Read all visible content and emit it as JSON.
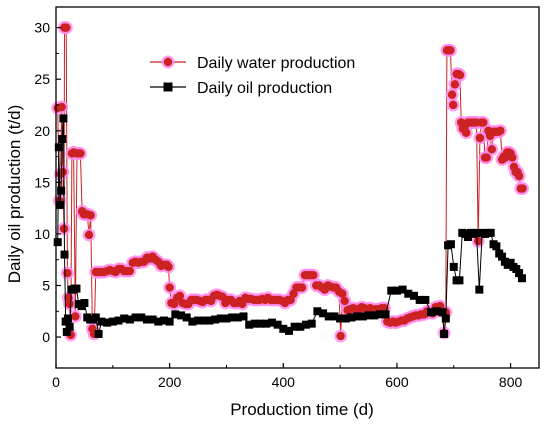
{
  "chart_data": {
    "type": "line",
    "xlabel": "Production time (d)",
    "ylabel": "Daily oil production (t/d)",
    "xlim": [
      0,
      850
    ],
    "ylim": [
      -3,
      32
    ],
    "xticks": [
      0,
      200,
      400,
      600,
      800
    ],
    "yticks": [
      0,
      5,
      10,
      15,
      20,
      25,
      30
    ],
    "grid": false,
    "legend_position": "top-center",
    "series": [
      {
        "name": "Daily water production",
        "marker": "circle",
        "color": "#cc2222",
        "halo": "#ff88ee",
        "points": [
          [
            3,
            22.2
          ],
          [
            6,
            13.2
          ],
          [
            8,
            15.8
          ],
          [
            10,
            22.3
          ],
          [
            12,
            16.0
          ],
          [
            14,
            10.5
          ],
          [
            15,
            30.0
          ],
          [
            18,
            30.0
          ],
          [
            20,
            6.2
          ],
          [
            22,
            3.8
          ],
          [
            24,
            3.2
          ],
          [
            26,
            0.2
          ],
          [
            28,
            17.8
          ],
          [
            31,
            17.9
          ],
          [
            34,
            2.0
          ],
          [
            37,
            17.8
          ],
          [
            40,
            17.8
          ],
          [
            43,
            17.8
          ],
          [
            46,
            12.2
          ],
          [
            49,
            11.9
          ],
          [
            52,
            11.9
          ],
          [
            55,
            11.9
          ],
          [
            58,
            9.9
          ],
          [
            61,
            11.8
          ],
          [
            64,
            0.8
          ],
          [
            67,
            0.3
          ],
          [
            70,
            6.3
          ],
          [
            75,
            6.3
          ],
          [
            80,
            6.3
          ],
          [
            85,
            6.3
          ],
          [
            90,
            6.4
          ],
          [
            95,
            6.5
          ],
          [
            100,
            6.4
          ],
          [
            105,
            6.3
          ],
          [
            110,
            6.6
          ],
          [
            115,
            6.6
          ],
          [
            120,
            6.4
          ],
          [
            125,
            6.4
          ],
          [
            130,
            6.4
          ],
          [
            135,
            7.2
          ],
          [
            140,
            7.3
          ],
          [
            145,
            7.2
          ],
          [
            150,
            7.3
          ],
          [
            155,
            7.3
          ],
          [
            160,
            7.7
          ],
          [
            165,
            7.6
          ],
          [
            170,
            7.8
          ],
          [
            175,
            7.5
          ],
          [
            180,
            7.3
          ],
          [
            185,
            6.9
          ],
          [
            190,
            7.0
          ],
          [
            195,
            7.0
          ],
          [
            198,
            6.8
          ],
          [
            200,
            4.8
          ],
          [
            203,
            3.3
          ],
          [
            208,
            3.2
          ],
          [
            213,
            3.8
          ],
          [
            218,
            4.0
          ],
          [
            223,
            3.3
          ],
          [
            228,
            3.2
          ],
          [
            233,
            3.2
          ],
          [
            238,
            3.6
          ],
          [
            243,
            3.6
          ],
          [
            248,
            3.6
          ],
          [
            253,
            3.5
          ],
          [
            258,
            3.4
          ],
          [
            263,
            3.6
          ],
          [
            268,
            3.6
          ],
          [
            273,
            3.5
          ],
          [
            278,
            4.0
          ],
          [
            283,
            4.1
          ],
          [
            288,
            4.0
          ],
          [
            293,
            3.9
          ],
          [
            298,
            3.3
          ],
          [
            303,
            3.6
          ],
          [
            308,
            3.6
          ],
          [
            313,
            3.3
          ],
          [
            318,
            3.3
          ],
          [
            323,
            3.5
          ],
          [
            328,
            3.2
          ],
          [
            333,
            3.8
          ],
          [
            338,
            3.7
          ],
          [
            343,
            3.7
          ],
          [
            348,
            3.6
          ],
          [
            353,
            3.6
          ],
          [
            358,
            3.6
          ],
          [
            363,
            3.7
          ],
          [
            368,
            3.6
          ],
          [
            373,
            3.8
          ],
          [
            378,
            3.6
          ],
          [
            383,
            3.6
          ],
          [
            388,
            3.6
          ],
          [
            393,
            3.6
          ],
          [
            398,
            3.5
          ],
          [
            403,
            3.3
          ],
          [
            408,
            3.6
          ],
          [
            413,
            3.6
          ],
          [
            418,
            4.2
          ],
          [
            423,
            4.8
          ],
          [
            428,
            4.8
          ],
          [
            433,
            4.8
          ],
          [
            438,
            6.0
          ],
          [
            443,
            6.0
          ],
          [
            448,
            6.0
          ],
          [
            453,
            6.0
          ],
          [
            458,
            5.0
          ],
          [
            463,
            5.0
          ],
          [
            468,
            4.8
          ],
          [
            473,
            4.6
          ],
          [
            478,
            5.0
          ],
          [
            483,
            4.9
          ],
          [
            488,
            4.8
          ],
          [
            493,
            4.8
          ],
          [
            498,
            4.4
          ],
          [
            501,
            0.1
          ],
          [
            504,
            4.2
          ],
          [
            508,
            3.5
          ],
          [
            513,
            2.6
          ],
          [
            518,
            2.7
          ],
          [
            523,
            2.8
          ],
          [
            528,
            2.7
          ],
          [
            533,
            2.7
          ],
          [
            538,
            2.9
          ],
          [
            543,
            2.8
          ],
          [
            548,
            2.6
          ],
          [
            553,
            2.8
          ],
          [
            558,
            2.6
          ],
          [
            563,
            2.7
          ],
          [
            568,
            2.7
          ],
          [
            573,
            2.8
          ],
          [
            578,
            2.8
          ],
          [
            583,
            1.5
          ],
          [
            588,
            1.4
          ],
          [
            593,
            1.5
          ],
          [
            598,
            1.4
          ],
          [
            603,
            1.5
          ],
          [
            608,
            1.6
          ],
          [
            613,
            1.6
          ],
          [
            618,
            1.8
          ],
          [
            623,
            1.9
          ],
          [
            628,
            2.0
          ],
          [
            633,
            2.1
          ],
          [
            638,
            2.1
          ],
          [
            643,
            2.2
          ],
          [
            648,
            2.2
          ],
          [
            653,
            2.5
          ],
          [
            658,
            2.4
          ],
          [
            663,
            2.3
          ],
          [
            668,
            2.9
          ],
          [
            672,
            2.7
          ],
          [
            676,
            3.0
          ],
          [
            680,
            2.5
          ],
          [
            683,
            0.4
          ],
          [
            686,
            2.4
          ],
          [
            688,
            27.8
          ],
          [
            691,
            27.8
          ],
          [
            694,
            27.8
          ],
          [
            697,
            23.5
          ],
          [
            699,
            22.5
          ],
          [
            702,
            24.5
          ],
          [
            705,
            25.5
          ],
          [
            708,
            25.5
          ],
          [
            711,
            25.4
          ],
          [
            713,
            20.8
          ],
          [
            716,
            20.2
          ],
          [
            719,
            20.3
          ],
          [
            722,
            19.8
          ],
          [
            725,
            20.8
          ],
          [
            728,
            20.8
          ],
          [
            731,
            20.8
          ],
          [
            734,
            20.8
          ],
          [
            737,
            20.8
          ],
          [
            740,
            20.8
          ],
          [
            743,
            9.3
          ],
          [
            746,
            19.3
          ],
          [
            749,
            20.8
          ],
          [
            752,
            20.8
          ],
          [
            755,
            17.4
          ],
          [
            758,
            17.4
          ],
          [
            761,
            20.0
          ],
          [
            764,
            19.5
          ],
          [
            767,
            18.2
          ],
          [
            770,
            19.9
          ],
          [
            773,
            19.9
          ],
          [
            776,
            19.9
          ],
          [
            779,
            19.9
          ],
          [
            782,
            20.0
          ],
          [
            785,
            17.2
          ],
          [
            788,
            17.5
          ],
          [
            791,
            17.4
          ],
          [
            794,
            17.9
          ],
          [
            797,
            17.9
          ],
          [
            800,
            17.8
          ],
          [
            803,
            17.4
          ],
          [
            806,
            16.5
          ],
          [
            809,
            16.0
          ],
          [
            812,
            16.0
          ],
          [
            815,
            15.6
          ],
          [
            818,
            14.4
          ],
          [
            821,
            14.4
          ]
        ]
      },
      {
        "name": "Daily oil production",
        "marker": "square",
        "color": "#000000",
        "points": [
          [
            3,
            9.2
          ],
          [
            5,
            18.4
          ],
          [
            7,
            12.8
          ],
          [
            9,
            14.2
          ],
          [
            11,
            19.2
          ],
          [
            13,
            21.2
          ],
          [
            15,
            8.0
          ],
          [
            17,
            1.5
          ],
          [
            19,
            0.5
          ],
          [
            21,
            1.8
          ],
          [
            24,
            1.0
          ],
          [
            27,
            4.6
          ],
          [
            30,
            4.6
          ],
          [
            33,
            4.7
          ],
          [
            36,
            4.7
          ],
          [
            40,
            3.2
          ],
          [
            45,
            3.0
          ],
          [
            50,
            3.3
          ],
          [
            55,
            1.9
          ],
          [
            60,
            1.7
          ],
          [
            65,
            1.7
          ],
          [
            70,
            1.9
          ],
          [
            75,
            0.3
          ],
          [
            80,
            1.5
          ],
          [
            90,
            1.4
          ],
          [
            100,
            1.5
          ],
          [
            110,
            1.6
          ],
          [
            120,
            1.8
          ],
          [
            130,
            1.7
          ],
          [
            140,
            1.9
          ],
          [
            150,
            1.9
          ],
          [
            160,
            1.7
          ],
          [
            170,
            1.7
          ],
          [
            180,
            1.5
          ],
          [
            190,
            1.6
          ],
          [
            200,
            1.5
          ],
          [
            210,
            2.2
          ],
          [
            220,
            2.1
          ],
          [
            230,
            1.9
          ],
          [
            240,
            1.5
          ],
          [
            250,
            1.6
          ],
          [
            260,
            1.6
          ],
          [
            270,
            1.6
          ],
          [
            280,
            1.7
          ],
          [
            290,
            1.8
          ],
          [
            300,
            1.8
          ],
          [
            310,
            1.9
          ],
          [
            320,
            1.9
          ],
          [
            330,
            2.0
          ],
          [
            340,
            1.2
          ],
          [
            350,
            1.3
          ],
          [
            360,
            1.3
          ],
          [
            370,
            1.3
          ],
          [
            380,
            1.4
          ],
          [
            390,
            1.2
          ],
          [
            400,
            0.8
          ],
          [
            410,
            0.6
          ],
          [
            420,
            1.0
          ],
          [
            430,
            1.0
          ],
          [
            440,
            1.2
          ],
          [
            450,
            1.3
          ],
          [
            460,
            2.5
          ],
          [
            470,
            2.3
          ],
          [
            480,
            2.0
          ],
          [
            490,
            2.0
          ],
          [
            500,
            1.8
          ],
          [
            510,
            1.8
          ],
          [
            520,
            1.9
          ],
          [
            530,
            2.0
          ],
          [
            540,
            2.0
          ],
          [
            550,
            2.1
          ],
          [
            560,
            2.1
          ],
          [
            570,
            2.2
          ],
          [
            580,
            2.2
          ],
          [
            590,
            4.5
          ],
          [
            600,
            4.5
          ],
          [
            610,
            4.6
          ],
          [
            620,
            4.2
          ],
          [
            630,
            4.0
          ],
          [
            640,
            3.6
          ],
          [
            650,
            3.6
          ],
          [
            660,
            2.4
          ],
          [
            670,
            2.5
          ],
          [
            680,
            2.4
          ],
          [
            683,
            0.3
          ],
          [
            686,
            1.8
          ],
          [
            690,
            8.9
          ],
          [
            695,
            9.0
          ],
          [
            700,
            6.8
          ],
          [
            705,
            5.5
          ],
          [
            710,
            5.5
          ],
          [
            715,
            10.1
          ],
          [
            720,
            10.0
          ],
          [
            725,
            9.7
          ],
          [
            730,
            10.1
          ],
          [
            735,
            10.0
          ],
          [
            740,
            10.1
          ],
          [
            745,
            4.6
          ],
          [
            750,
            10.1
          ],
          [
            755,
            10.0
          ],
          [
            760,
            10.1
          ],
          [
            765,
            10.1
          ],
          [
            770,
            9.0
          ],
          [
            775,
            8.8
          ],
          [
            780,
            8.1
          ],
          [
            785,
            7.8
          ],
          [
            790,
            7.3
          ],
          [
            795,
            7.0
          ],
          [
            800,
            7.2
          ],
          [
            805,
            6.8
          ],
          [
            810,
            6.6
          ],
          [
            815,
            6.2
          ],
          [
            820,
            5.7
          ]
        ]
      }
    ]
  }
}
